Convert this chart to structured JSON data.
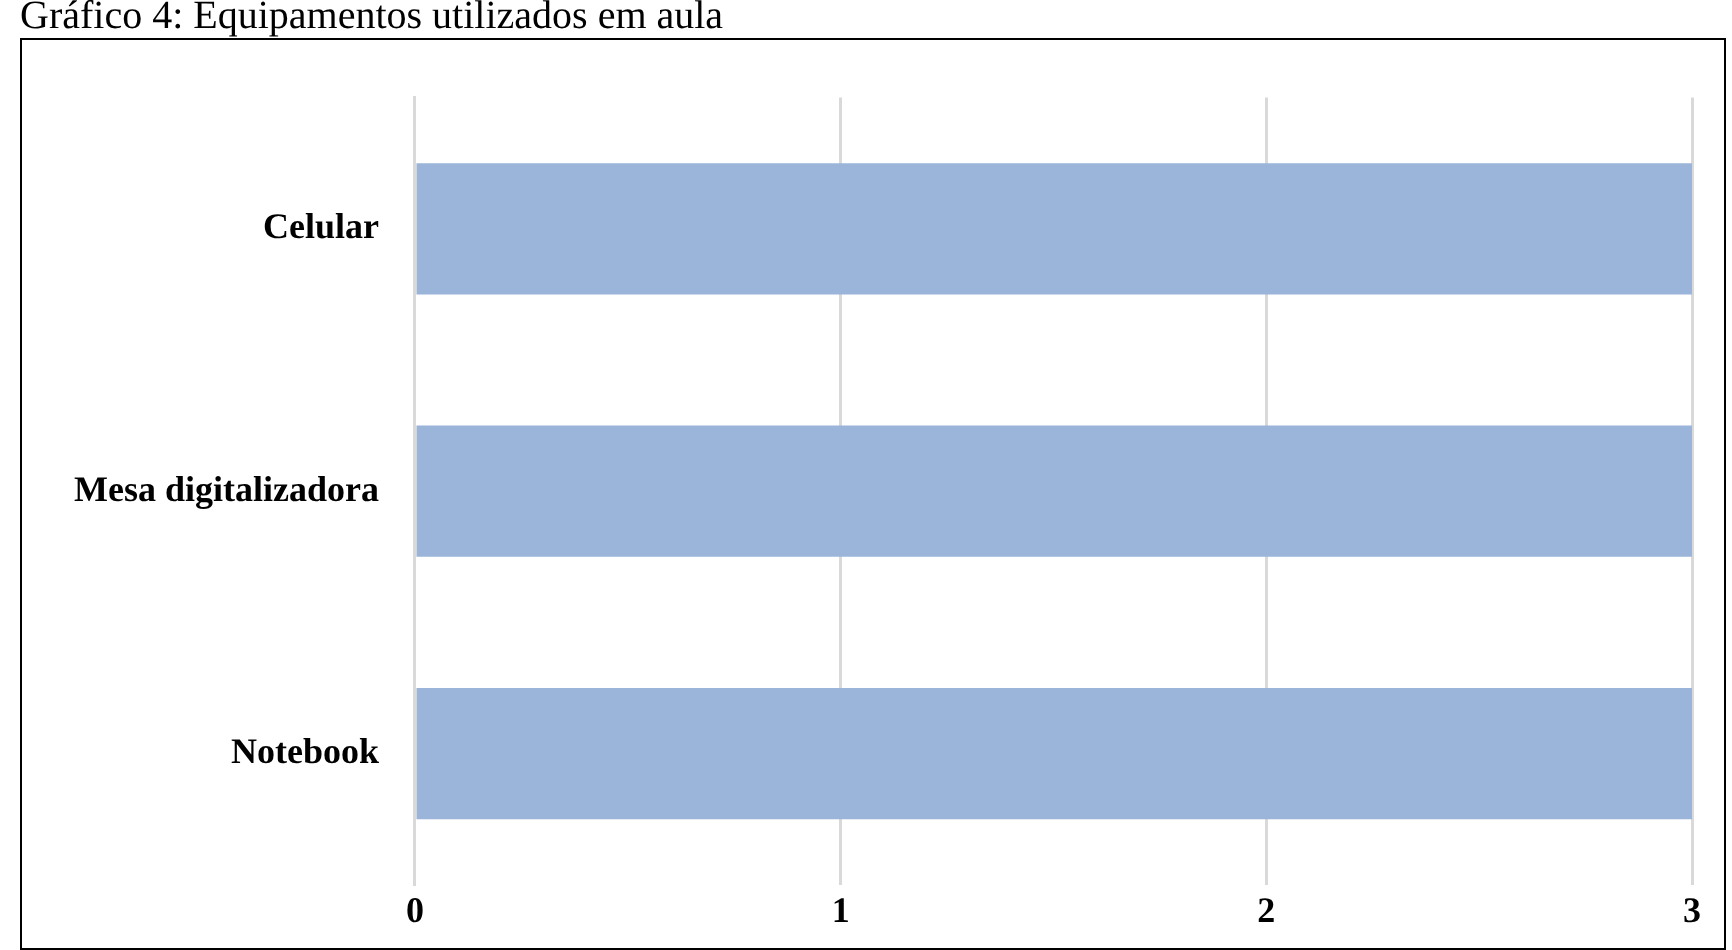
{
  "chart_data": {
    "type": "bar",
    "orientation": "horizontal",
    "title": "Gráfico 4: Equipamentos utilizados em aula",
    "categories": [
      "Celular",
      "Mesa digitalizadora",
      "Notebook"
    ],
    "values": [
      3,
      3,
      3
    ],
    "color": "#9ab4da",
    "xlim": [
      0,
      3
    ],
    "xticks": [
      0,
      1,
      2,
      3
    ],
    "grid": "x",
    "legend": false
  }
}
